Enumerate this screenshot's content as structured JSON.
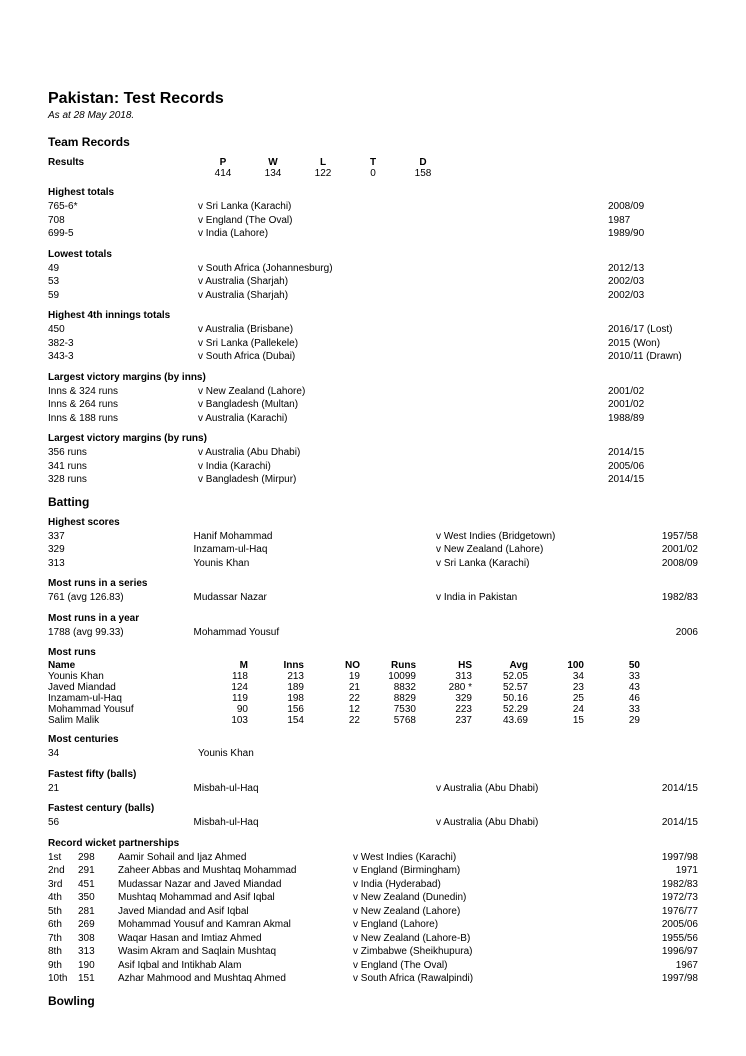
{
  "title": "Pakistan: Test Records",
  "asof": "As at 28 May 2018.",
  "sections": {
    "team": "Team Records",
    "batting": "Batting",
    "bowling": "Bowling"
  },
  "results": {
    "header": "Results",
    "cols": [
      "P",
      "W",
      "L",
      "T",
      "D"
    ],
    "vals": [
      "414",
      "134",
      "122",
      "0",
      "158"
    ]
  },
  "highest_totals": {
    "header": "Highest totals",
    "rows": [
      {
        "l": "765-6*",
        "m": "v Sri Lanka (Karachi)",
        "y": "2008/09"
      },
      {
        "l": "708",
        "m": "v England (The Oval)",
        "y": "1987"
      },
      {
        "l": "699-5",
        "m": "v India (Lahore)",
        "y": "1989/90"
      }
    ]
  },
  "lowest_totals": {
    "header": "Lowest totals",
    "rows": [
      {
        "l": "49",
        "m": "v South Africa (Johannesburg)",
        "y": "2012/13"
      },
      {
        "l": "53",
        "m": "v Australia (Sharjah)",
        "y": "2002/03"
      },
      {
        "l": "59",
        "m": "v Australia (Sharjah)",
        "y": "2002/03"
      }
    ]
  },
  "highest_4th": {
    "header": "Highest 4th innings totals",
    "rows": [
      {
        "l": "450",
        "m": "v Australia (Brisbane)",
        "y": "2016/17 (Lost)"
      },
      {
        "l": "382-3",
        "m": "v Sri Lanka (Pallekele)",
        "y": "2015 (Won)"
      },
      {
        "l": "343-3",
        "m": "v South Africa (Dubai)",
        "y": "2010/11 (Drawn)"
      }
    ]
  },
  "victory_inns": {
    "header": "Largest victory margins (by inns)",
    "rows": [
      {
        "l": "Inns & 324 runs",
        "m": "v New Zealand (Lahore)",
        "y": "2001/02"
      },
      {
        "l": "Inns & 264 runs",
        "m": "v Bangladesh (Multan)",
        "y": "2001/02"
      },
      {
        "l": "Inns & 188 runs",
        "m": "v Australia (Karachi)",
        "y": "1988/89"
      }
    ]
  },
  "victory_runs": {
    "header": "Largest victory margins (by runs)",
    "rows": [
      {
        "l": "356 runs",
        "m": "v Australia (Abu Dhabi)",
        "y": "2014/15"
      },
      {
        "l": "341 runs",
        "m": "v India (Karachi)",
        "y": "2005/06"
      },
      {
        "l": "328 runs",
        "m": "v Bangladesh (Mirpur)",
        "y": "2014/15"
      }
    ]
  },
  "highest_scores": {
    "header": "Highest scores",
    "rows": [
      {
        "l": "337",
        "p": "Hanif Mohammad",
        "v": "v West Indies (Bridgetown)",
        "y": "1957/58"
      },
      {
        "l": "329",
        "p": "Inzamam-ul-Haq",
        "v": "v New Zealand (Lahore)",
        "y": "2001/02"
      },
      {
        "l": "313",
        "p": "Younis Khan",
        "v": "v Sri Lanka (Karachi)",
        "y": "2008/09"
      }
    ]
  },
  "most_runs_series": {
    "header": "Most runs in a series",
    "l": "761 (avg 126.83)",
    "p": "Mudassar Nazar",
    "v": "v India in Pakistan",
    "y": "1982/83"
  },
  "most_runs_year": {
    "header": "Most runs in a year",
    "l": "1788 (avg 99.33)",
    "p": "Mohammad Yousuf",
    "v": "",
    "y": "2006"
  },
  "most_runs": {
    "header": "Most runs",
    "cols": [
      "Name",
      "M",
      "Inns",
      "NO",
      "Runs",
      "HS",
      "Avg",
      "100",
      "50"
    ],
    "rows": [
      [
        "Younis Khan",
        "118",
        "213",
        "19",
        "10099",
        "313",
        "52.05",
        "34",
        "33"
      ],
      [
        "Javed Miandad",
        "124",
        "189",
        "21",
        "8832",
        "280 *",
        "52.57",
        "23",
        "43"
      ],
      [
        "Inzamam-ul-Haq",
        "119",
        "198",
        "22",
        "8829",
        "329",
        "50.16",
        "25",
        "46"
      ],
      [
        "Mohammad Yousuf",
        "90",
        "156",
        "12",
        "7530",
        "223",
        "52.29",
        "24",
        "33"
      ],
      [
        "Salim Malik",
        "103",
        "154",
        "22",
        "5768",
        "237",
        "43.69",
        "15",
        "29"
      ]
    ]
  },
  "most_centuries": {
    "header": "Most centuries",
    "l": "34",
    "p": "Younis Khan"
  },
  "fastest_fifty": {
    "header": "Fastest fifty (balls)",
    "l": "21",
    "p": "Misbah-ul-Haq",
    "v": "v Australia (Abu Dhabi)",
    "y": "2014/15"
  },
  "fastest_century": {
    "header": "Fastest century (balls)",
    "l": "56",
    "p": "Misbah-ul-Haq",
    "v": "v Australia (Abu Dhabi)",
    "y": "2014/15"
  },
  "partnerships": {
    "header": "Record wicket partnerships",
    "rows": [
      {
        "n": "1st",
        "r": "298",
        "p": "Aamir Sohail and Ijaz Ahmed",
        "v": "v West Indies (Karachi)",
        "y": "1997/98"
      },
      {
        "n": "2nd",
        "r": "291",
        "p": "Zaheer Abbas and Mushtaq Mohammad",
        "v": "v England (Birmingham)",
        "y": "1971"
      },
      {
        "n": "3rd",
        "r": "451",
        "p": "Mudassar Nazar and Javed Miandad",
        "v": "v India (Hyderabad)",
        "y": "1982/83"
      },
      {
        "n": "4th",
        "r": "350",
        "p": "Mushtaq Mohammad and Asif Iqbal",
        "v": "v New Zealand (Dunedin)",
        "y": "1972/73"
      },
      {
        "n": "5th",
        "r": "281",
        "p": "Javed Miandad and Asif Iqbal",
        "v": "v New Zealand (Lahore)",
        "y": "1976/77"
      },
      {
        "n": "6th",
        "r": "269",
        "p": "Mohammad Yousuf and Kamran Akmal",
        "v": "v England (Lahore)",
        "y": "2005/06"
      },
      {
        "n": "7th",
        "r": "308",
        "p": "Waqar Hasan and Imtiaz Ahmed",
        "v": "v New Zealand (Lahore-B)",
        "y": "1955/56"
      },
      {
        "n": "8th",
        "r": "313",
        "p": "Wasim Akram and Saqlain Mushtaq",
        "v": "v Zimbabwe (Sheikhupura)",
        "y": "1996/97"
      },
      {
        "n": "9th",
        "r": "190",
        "p": "Asif Iqbal and Intikhab Alam",
        "v": "v England (The Oval)",
        "y": "1967"
      },
      {
        "n": "10th",
        "r": "151",
        "p": "Azhar Mahmood and Mushtaq Ahmed",
        "v": "v South Africa (Rawalpindi)",
        "y": "1997/98"
      }
    ]
  }
}
